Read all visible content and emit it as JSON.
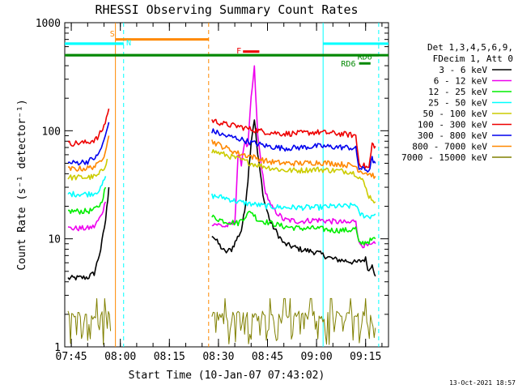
{
  "chart_data": {
    "type": "line",
    "title": "RHESSI Observing Summary Count Rates",
    "xlabel": "Start Time (10-Jan-07 07:43:02)",
    "ylabel": "Count Rate (s⁻¹ detector⁻¹)",
    "yscale": "log",
    "ylim": [
      1,
      1000
    ],
    "xlim": [
      "07:43",
      "09:22"
    ],
    "x_ticks": [
      "07:45",
      "08:00",
      "08:15",
      "08:30",
      "08:45",
      "09:00",
      "09:15"
    ],
    "y_ticks": [
      "1",
      "10",
      "100",
      "1000"
    ],
    "legend_header": [
      "Det 1,3,4,5,6,9,",
      "FDecim 1, Att 0"
    ],
    "legend_position": "right",
    "timestamp": "13-Oct-2021 18:57",
    "series": [
      {
        "name": "3 - 6 keV",
        "color": "#000000",
        "segments": [
          [
            [
              "07:44",
              4.3
            ],
            [
              "07:50",
              4.4
            ],
            [
              "07:52",
              4.8
            ],
            [
              "07:54",
              8
            ],
            [
              "07:55.5",
              15
            ],
            [
              "07:56.5",
              30
            ]
          ],
          [
            [
              "08:28",
              11
            ],
            [
              "08:30",
              9
            ],
            [
              "08:32",
              7.5
            ],
            [
              "08:34",
              8
            ],
            [
              "08:37",
              12
            ],
            [
              "08:38",
              18
            ],
            [
              "08:39",
              35
            ],
            [
              "08:40",
              80
            ],
            [
              "08:41",
              130
            ],
            [
              "08:42",
              60
            ],
            [
              "08:44",
              22
            ],
            [
              "08:46",
              14
            ],
            [
              "08:50",
              9
            ],
            [
              "08:55",
              8
            ],
            [
              "09:00",
              7.5
            ],
            [
              "09:05",
              6.5
            ],
            [
              "09:10",
              6.2
            ],
            [
              "09:12",
              6
            ],
            [
              "09:15",
              6.5
            ],
            [
              "09:16",
              5
            ],
            [
              "09:17",
              6
            ],
            [
              "09:18",
              4.5
            ]
          ]
        ]
      },
      {
        "name": "6 - 12 keV",
        "color": "#ee00ee",
        "segments": [
          [
            [
              "07:44",
              12.5
            ],
            [
              "07:50",
              12.5
            ],
            [
              "07:52",
              13
            ],
            [
              "07:54",
              16
            ],
            [
              "07:55.5",
              22
            ]
          ],
          [
            [
              "08:28",
              14
            ],
            [
              "08:32",
              13
            ],
            [
              "08:35",
              14
            ],
            [
              "08:36",
              60
            ],
            [
              "08:37",
              50
            ],
            [
              "08:38",
              80
            ],
            [
              "08:39",
              70
            ],
            [
              "08:40",
              200
            ],
            [
              "08:41",
              380
            ],
            [
              "08:42",
              90
            ],
            [
              "08:44",
              30
            ],
            [
              "08:46",
              20
            ],
            [
              "08:50",
              15
            ],
            [
              "08:55",
              14.5
            ],
            [
              "09:00",
              15
            ],
            [
              "09:05",
              14.5
            ],
            [
              "09:10",
              14
            ],
            [
              "09:12",
              15
            ],
            [
              "09:13",
              9
            ],
            [
              "09:16",
              8.5
            ],
            [
              "09:18",
              9
            ]
          ]
        ]
      },
      {
        "name": "12 - 25 keV",
        "color": "#00ee00",
        "segments": [
          [
            [
              "07:44",
              18
            ],
            [
              "07:50",
              18
            ],
            [
              "07:52",
              18.5
            ],
            [
              "07:54",
              21
            ],
            [
              "07:55.5",
              30
            ]
          ],
          [
            [
              "08:28",
              16
            ],
            [
              "08:32",
              14.5
            ],
            [
              "08:36",
              14
            ],
            [
              "08:38",
              16
            ],
            [
              "08:40",
              18
            ],
            [
              "08:42",
              15
            ],
            [
              "08:46",
              14
            ],
            [
              "08:50",
              13
            ],
            [
              "08:55",
              12.5
            ],
            [
              "09:00",
              12.5
            ],
            [
              "09:05",
              12
            ],
            [
              "09:10",
              12
            ],
            [
              "09:12",
              12.5
            ],
            [
              "09:13",
              9
            ],
            [
              "09:16",
              9.5
            ],
            [
              "09:18",
              10
            ]
          ]
        ]
      },
      {
        "name": "25 - 50 keV",
        "color": "#00ffff",
        "segments": [
          [
            [
              "07:44",
              26
            ],
            [
              "07:50",
              26
            ],
            [
              "07:52",
              26.5
            ],
            [
              "07:54",
              29
            ],
            [
              "07:55.5",
              38
            ]
          ],
          [
            [
              "08:28",
              25
            ],
            [
              "08:32",
              24
            ],
            [
              "08:36",
              22
            ],
            [
              "08:40",
              21
            ],
            [
              "08:45",
              20
            ],
            [
              "08:50",
              19.5
            ],
            [
              "08:55",
              19.5
            ],
            [
              "09:00",
              19.5
            ],
            [
              "09:05",
              20
            ],
            [
              "09:10",
              20
            ],
            [
              "09:12",
              21
            ],
            [
              "09:13",
              17
            ],
            [
              "09:16",
              16
            ],
            [
              "09:18",
              17
            ]
          ]
        ]
      },
      {
        "name": "50 - 100 keV",
        "color": "#cccc00",
        "segments": [
          [
            [
              "07:44",
              37
            ],
            [
              "07:50",
              37
            ],
            [
              "07:53",
              38
            ],
            [
              "07:55",
              45
            ],
            [
              "07:56",
              55
            ]
          ],
          [
            [
              "08:28",
              65
            ],
            [
              "08:32",
              60
            ],
            [
              "08:36",
              55
            ],
            [
              "08:40",
              50
            ],
            [
              "08:45",
              46
            ],
            [
              "08:50",
              43
            ],
            [
              "08:55",
              43
            ],
            [
              "09:00",
              44
            ],
            [
              "09:05",
              43
            ],
            [
              "09:10",
              42
            ],
            [
              "09:12",
              40
            ],
            [
              "09:14",
              35
            ],
            [
              "09:16",
              25
            ],
            [
              "09:18",
              22
            ]
          ]
        ]
      },
      {
        "name": "100 - 300 keV",
        "color": "#ee0000",
        "segments": [
          [
            [
              "07:44",
              76
            ],
            [
              "07:50",
              78
            ],
            [
              "07:53",
              85
            ],
            [
              "07:55",
              110
            ],
            [
              "07:56.5",
              160
            ]
          ],
          [
            [
              "08:28",
              125
            ],
            [
              "08:32",
              115
            ],
            [
              "08:36",
              110
            ],
            [
              "08:40",
              103
            ],
            [
              "08:45",
              97
            ],
            [
              "08:50",
              94
            ],
            [
              "08:55",
              95
            ],
            [
              "09:00",
              97
            ],
            [
              "09:05",
              95
            ],
            [
              "09:10",
              92
            ],
            [
              "09:12",
              90
            ],
            [
              "09:13",
              50
            ],
            [
              "09:16",
              45
            ],
            [
              "09:17",
              75
            ],
            [
              "09:18",
              72
            ]
          ]
        ]
      },
      {
        "name": "300 - 800 keV",
        "color": "#0000ee",
        "segments": [
          [
            [
              "07:44",
              50
            ],
            [
              "07:50",
              52
            ],
            [
              "07:53",
              58
            ],
            [
              "07:55",
              80
            ],
            [
              "07:56.5",
              120
            ]
          ],
          [
            [
              "08:28",
              100
            ],
            [
              "08:32",
              90
            ],
            [
              "08:36",
              85
            ],
            [
              "08:40",
              78
            ],
            [
              "08:45",
              72
            ],
            [
              "08:50",
              69
            ],
            [
              "08:55",
              70
            ],
            [
              "09:00",
              72
            ],
            [
              "09:05",
              71
            ],
            [
              "09:10",
              70
            ],
            [
              "09:12",
              68
            ],
            [
              "09:13",
              45
            ],
            [
              "09:16",
              43
            ],
            [
              "09:17",
              55
            ],
            [
              "09:18",
              50
            ]
          ]
        ]
      },
      {
        "name": "800 - 7000 keV",
        "color": "#ff8800",
        "segments": [
          [
            [
              "07:44",
              44
            ],
            [
              "07:50",
              45
            ],
            [
              "07:53",
              48
            ],
            [
              "07:55",
              60
            ],
            [
              "07:56.5",
              90
            ]
          ],
          [
            [
              "08:28",
              80
            ],
            [
              "08:32",
              70
            ],
            [
              "08:36",
              62
            ],
            [
              "08:40",
              58
            ],
            [
              "08:45",
              52
            ],
            [
              "08:50",
              50
            ],
            [
              "08:55",
              50
            ],
            [
              "09:00",
              51
            ],
            [
              "09:05",
              50
            ],
            [
              "09:10",
              48
            ],
            [
              "09:12",
              47
            ],
            [
              "09:13",
              43
            ],
            [
              "09:16",
              40
            ],
            [
              "09:18",
              38
            ]
          ]
        ]
      },
      {
        "name": "7000 - 15000 keV",
        "color": "#808000",
        "segments": [
          [
            [
              "07:44",
              1.4
            ],
            [
              "07:47",
              1.6
            ],
            [
              "07:50",
              1.5
            ],
            [
              "07:52",
              1.7
            ],
            [
              "07:54",
              1.5
            ],
            [
              "07:56",
              1.5
            ],
            [
              "07:57",
              1.4
            ]
          ],
          [
            [
              "08:28",
              1.6
            ],
            [
              "08:32",
              1.5
            ],
            [
              "08:36",
              1.6
            ],
            [
              "08:40",
              1.5
            ],
            [
              "08:45",
              1.5
            ],
            [
              "08:50",
              1.6
            ],
            [
              "08:55",
              1.5
            ],
            [
              "09:00",
              1.5
            ],
            [
              "09:05",
              1.6
            ],
            [
              "09:10",
              1.5
            ],
            [
              "09:15",
              1.5
            ],
            [
              "09:18",
              1.5
            ]
          ]
        ]
      }
    ],
    "vertical_markers": [
      {
        "time": "07:58.5",
        "color": "#ff8800",
        "style": "solid"
      },
      {
        "time": "08:01",
        "color": "#00ffff",
        "style": "dashed"
      },
      {
        "time": "08:27",
        "color": "#ff8800",
        "style": "dashed"
      },
      {
        "time": "09:02",
        "color": "#00ffff",
        "style": "solid"
      },
      {
        "time": "09:19",
        "color": "#00ffff",
        "style": "dashed"
      }
    ],
    "intervals": [
      {
        "label": "S",
        "color": "#ff8800",
        "start": "07:58.5",
        "end": "08:27",
        "y": 700,
        "label_time": "07:56.8",
        "label_y": 800
      },
      {
        "label": "N",
        "color": "#00ffff",
        "start": "07:43",
        "end": "08:01",
        "y": 640,
        "label_time": "08:01.8",
        "label_y": 660
      },
      {
        "label": "N",
        "color": "#00ffff",
        "start": "09:02",
        "end": "09:22",
        "y": 640,
        "label_time": "",
        "label_y": 640
      },
      {
        "label": "F",
        "color": "#ee0000",
        "start": "08:37.5",
        "end": "08:42.5",
        "y": 540,
        "label_time": "08:35.5",
        "label_y": 555
      },
      {
        "label": "RD6",
        "color": "#008800",
        "start": "07:43",
        "end": "09:22",
        "y": 500,
        "label_time": "09:12.5",
        "label_y": 490
      },
      {
        "label": "RD6",
        "color": "#008800",
        "start": "09:13",
        "end": "09:16.5",
        "y": 420,
        "label_time": "09:07.5",
        "label_y": 420
      }
    ]
  }
}
